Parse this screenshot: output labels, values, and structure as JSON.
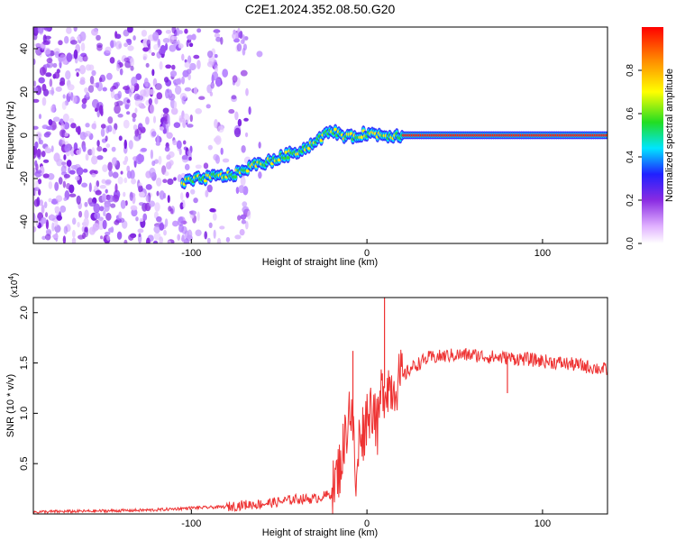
{
  "figure": {
    "title": "C2E1.2024.352.08.50.G20"
  },
  "chart_data": [
    {
      "type": "heatmap",
      "xlabel": "Height of straight line (km)",
      "ylabel": "Frequency (Hz)",
      "xlim": [
        -190,
        137
      ],
      "ylim": [
        -50,
        50
      ],
      "xticks": [
        -100,
        0,
        100
      ],
      "yticks": [
        -40,
        -20,
        0,
        20,
        40
      ],
      "colorbar": {
        "label": "Normalized spectral amplitude",
        "range": [
          0,
          1
        ],
        "ticks": [
          0.0,
          0.2,
          0.4,
          0.6,
          0.8
        ]
      },
      "ridge": {
        "x": [
          -105,
          -95,
          -85,
          -75,
          -65,
          -55,
          -45,
          -35,
          -28,
          -20,
          -10,
          0,
          10,
          20,
          137
        ],
        "y": [
          -22,
          -20,
          -19,
          -18,
          -14,
          -12,
          -9,
          -6,
          -2,
          2,
          -1,
          1,
          0,
          0,
          0
        ]
      },
      "noise_columns_x": [
        -88,
        -72
      ]
    },
    {
      "type": "line",
      "xlabel": "Height of straight line (km)",
      "ylabel": "SNR (10 * v/v)",
      "yscale_label": "(x10",
      "yscale_exp": "4",
      "xlim": [
        -190,
        137
      ],
      "ylim": [
        0,
        2.15
      ],
      "xticks": [
        -100,
        0,
        100
      ],
      "yticks": [
        0.5,
        1.0,
        1.5,
        2.0
      ],
      "series": [
        {
          "color": "#ee3333",
          "x": [
            -190,
            -150,
            -120,
            -100,
            -80,
            -70,
            -60,
            -50,
            -40,
            -30,
            -20,
            -15,
            -12,
            -10,
            -8,
            -6,
            -4,
            -2,
            0,
            2,
            4,
            6,
            8,
            10,
            12,
            14,
            16,
            18,
            20,
            25,
            30,
            35,
            40,
            50,
            60,
            70,
            80,
            90,
            100,
            110,
            120,
            130,
            137
          ],
          "y": [
            0.02,
            0.03,
            0.04,
            0.06,
            0.07,
            0.09,
            0.1,
            0.12,
            0.15,
            0.15,
            0.2,
            0.5,
            0.8,
            1.1,
            0.85,
            0.2,
            0.9,
            0.8,
            1.0,
            1.05,
            1.1,
            0.8,
            1.2,
            1.25,
            1.3,
            1.25,
            1.3,
            1.32,
            1.35,
            1.45,
            1.5,
            1.55,
            1.56,
            1.58,
            1.58,
            1.56,
            1.55,
            1.54,
            1.52,
            1.5,
            1.48,
            1.45,
            1.43
          ]
        }
      ],
      "spikes": [
        {
          "x": -8,
          "y": 1.62
        },
        {
          "x": 10,
          "y": 2.15
        },
        {
          "x": 80,
          "y": 1.2
        }
      ]
    }
  ]
}
